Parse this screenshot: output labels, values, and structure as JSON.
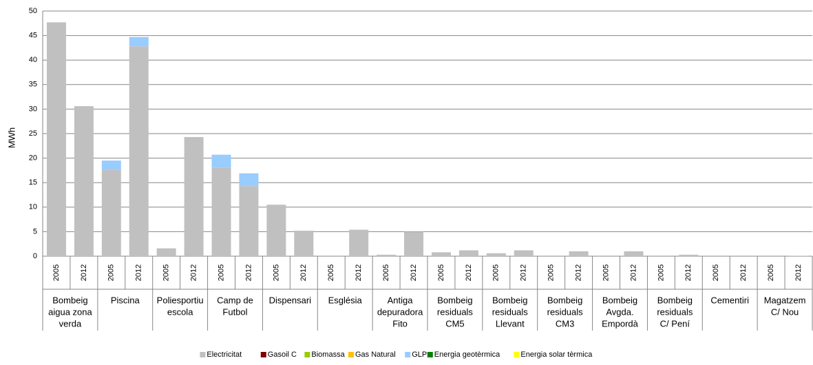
{
  "chart_data": {
    "type": "stacked_bar",
    "y_label": "MWh",
    "categories": [
      "2005",
      "2012",
      "2005",
      "2012",
      "2005",
      "2012",
      "2005",
      "2012",
      "2005",
      "2012",
      "2005",
      "2012",
      "2005",
      "2012",
      "2005",
      "2012",
      "2005",
      "2012",
      "2005",
      "2012",
      "2005",
      "2012",
      "2005",
      "2012",
      "2005",
      "2012",
      "2005",
      "2012"
    ],
    "groups": [
      [
        "Bombeig",
        "aigua zona",
        "verda"
      ],
      [
        "Piscina"
      ],
      [
        "Poliesportiu",
        "escola"
      ],
      [
        "Camp de",
        "Futbol"
      ],
      [
        "Dispensari"
      ],
      [
        "Església"
      ],
      [
        "Antiga",
        "depuradora",
        "Fito"
      ],
      [
        "Bombeig",
        "residuals",
        "CM5"
      ],
      [
        "Bombeig",
        "residuals",
        "Llevant"
      ],
      [
        "Bombeig",
        "residuals",
        "CM3"
      ],
      [
        "Bombeig",
        "Avgda.",
        "Empordà"
      ],
      [
        "Bombeig",
        "residuals",
        "C/ Pení"
      ],
      [
        "Cementiri"
      ],
      [
        "Magatzem",
        "C/ Nou"
      ]
    ],
    "series": [
      {
        "name": "Electricitat",
        "color": "#c0c0c0",
        "values": [
          47.7,
          30.6,
          17.6,
          42.8,
          1.6,
          24.3,
          18.0,
          14.3,
          10.5,
          5.2,
          0,
          5.4,
          0.3,
          5.0,
          0.8,
          1.2,
          0.6,
          1.2,
          0,
          1.0,
          0,
          1.0,
          0,
          0.3,
          0,
          0,
          0,
          0.1
        ]
      },
      {
        "name": "Gasoil C",
        "color": "#7f0000",
        "values": [
          0,
          0,
          0,
          0,
          0,
          0,
          0,
          0,
          0,
          0,
          0,
          0,
          0,
          0,
          0,
          0,
          0,
          0,
          0,
          0,
          0,
          0,
          0,
          0,
          0,
          0,
          0,
          0
        ]
      },
      {
        "name": "Biomassa",
        "color": "#99cc00",
        "values": [
          0,
          0,
          0,
          0,
          0,
          0,
          0,
          0,
          0,
          0,
          0,
          0,
          0,
          0,
          0,
          0,
          0,
          0,
          0,
          0,
          0,
          0,
          0,
          0,
          0,
          0,
          0,
          0
        ]
      },
      {
        "name": "Gas Natural",
        "color": "#ffc000",
        "values": [
          0,
          0,
          0,
          0,
          0,
          0,
          0,
          0,
          0,
          0,
          0,
          0,
          0,
          0,
          0,
          0,
          0,
          0,
          0,
          0,
          0,
          0,
          0,
          0,
          0,
          0,
          0,
          0
        ]
      },
      {
        "name": "GLP",
        "color": "#99ccff",
        "values": [
          0,
          0,
          1.9,
          1.9,
          0,
          0,
          2.7,
          2.6,
          0,
          0,
          0,
          0,
          0,
          0,
          0,
          0,
          0,
          0,
          0,
          0,
          0,
          0,
          0,
          0,
          0,
          0,
          0,
          0
        ]
      },
      {
        "name": "Energia geotèrmica",
        "color": "#008000",
        "values": [
          0,
          0,
          0,
          0,
          0,
          0,
          0,
          0,
          0,
          0,
          0,
          0,
          0,
          0,
          0,
          0,
          0,
          0,
          0,
          0,
          0,
          0,
          0,
          0,
          0,
          0,
          0,
          0
        ]
      },
      {
        "name": "Energia solar tèrmica",
        "color": "#ffff00",
        "values": [
          0,
          0,
          0,
          0,
          0,
          0,
          0,
          0,
          0,
          0,
          0,
          0,
          0,
          0,
          0,
          0,
          0,
          0,
          0,
          0,
          0,
          0,
          0,
          0,
          0,
          0,
          0,
          0
        ]
      }
    ],
    "ylim": [
      0,
      50
    ],
    "yticks": [
      0,
      5,
      10,
      15,
      20,
      25,
      30,
      35,
      40,
      45,
      50
    ],
    "grid": true
  }
}
